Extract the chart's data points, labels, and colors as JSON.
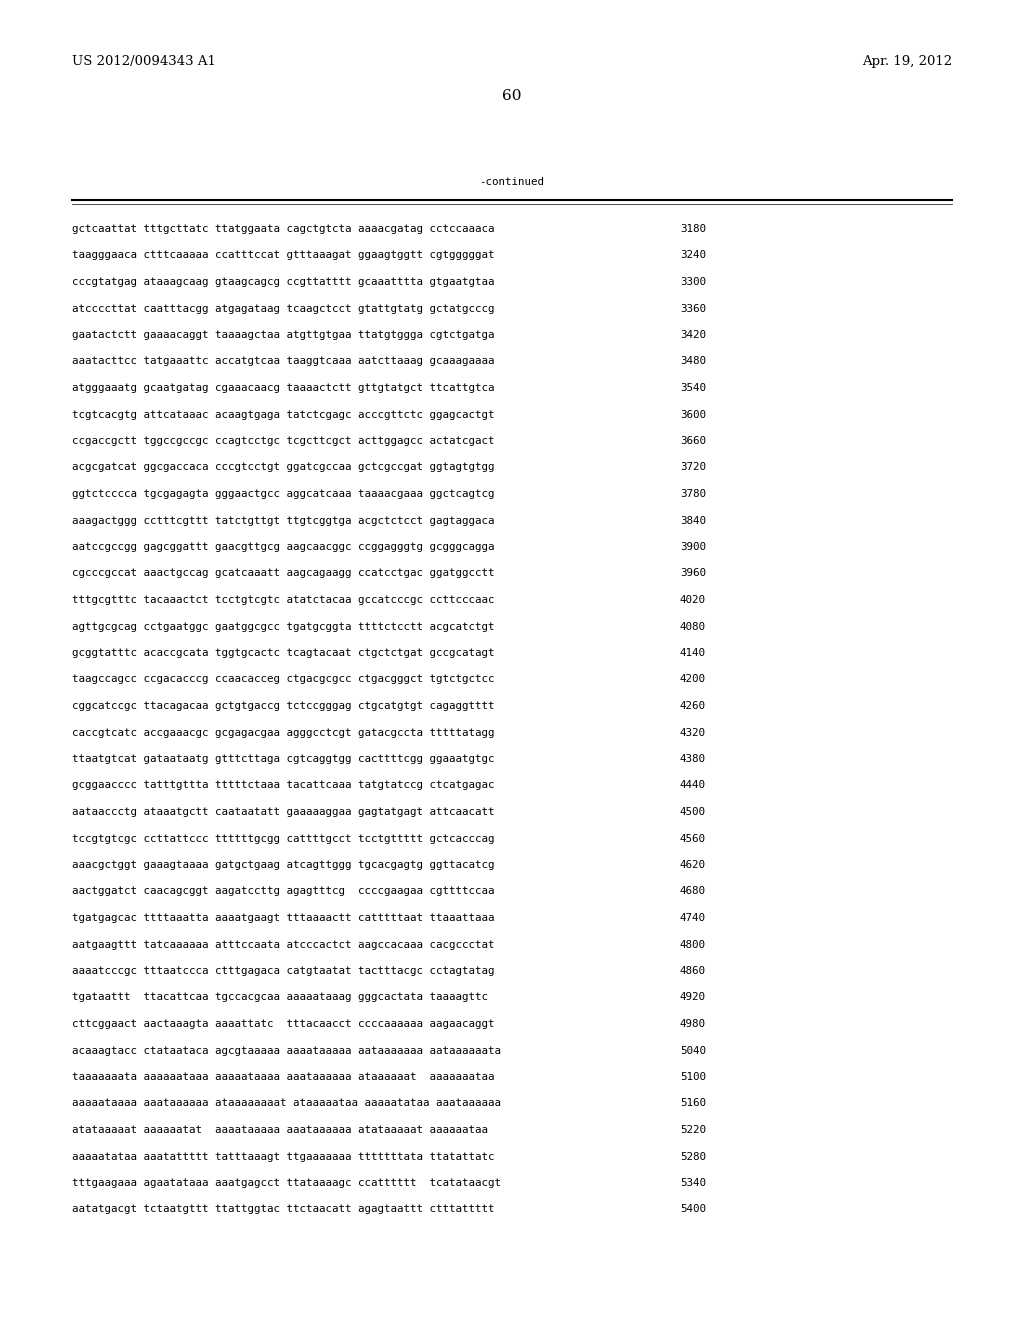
{
  "header_left": "US 2012/0094343 A1",
  "header_right": "Apr. 19, 2012",
  "page_number": "60",
  "continued_label": "-continued",
  "background_color": "#ffffff",
  "text_color": "#000000",
  "font_size_header": 9.5,
  "font_size_body": 7.8,
  "font_size_page": 11,
  "lines": [
    [
      "gctcaattat tttgcttatc ttatggaata cagctgtcta aaaacgatag cctccaaaca",
      "3180"
    ],
    [
      "taagggaaca ctttcaaaaa ccatttccat gtttaaagat ggaagtggtt cgtgggggat",
      "3240"
    ],
    [
      "cccgtatgag ataaagcaag gtaagcagcg ccgttatttt gcaaatttta gtgaatgtaa",
      "3300"
    ],
    [
      "atccccttat caatttacgg atgagataag tcaagctcct gtattgtatg gctatgcccg",
      "3360"
    ],
    [
      "gaatactctt gaaaacaggt taaaagctaa atgttgtgaa ttatgtggga cgtctgatga",
      "3420"
    ],
    [
      "aaatacttcc tatgaaattc accatgtcaa taaggtcaaa aatcttaaag gcaaagaaaa",
      "3480"
    ],
    [
      "atgggaaatg gcaatgatag cgaaacaacg taaaactctt gttgtatgct ttcattgtca",
      "3540"
    ],
    [
      "tcgtcacgtg attcataaac acaagtgaga tatctcgagc acccgttctc ggagcactgt",
      "3600"
    ],
    [
      "ccgaccgctt tggccgccgc ccagtcctgc tcgcttcgct acttggagcc actatcgact",
      "3660"
    ],
    [
      "acgcgatcat ggcgaccaca cccgtcctgt ggatcgccaa gctcgccgat ggtagtgtgg",
      "3720"
    ],
    [
      "ggtctcccca tgcgagagta gggaactgcc aggcatcaaa taaaacgaaa ggctcagtcg",
      "3780"
    ],
    [
      "aaagactggg cctttcgttt tatctgttgt ttgtcggtga acgctctcct gagtaggaca",
      "3840"
    ],
    [
      "aatccgccgg gagcggattt gaacgttgcg aagcaacggc ccggagggtg gcgggcagga",
      "3900"
    ],
    [
      "cgcccgccat aaactgccag gcatcaaatt aagcagaagg ccatcctgac ggatggcctt",
      "3960"
    ],
    [
      "tttgcgtttc tacaaactct tcctgtcgtc atatctacaa gccatcccgc ccttcccaac",
      "4020"
    ],
    [
      "agttgcgcag cctgaatggc gaatggcgcc tgatgcggta ttttctcctt acgcatctgt",
      "4080"
    ],
    [
      "gcggtatttc acaccgcata tggtgcactc tcagtacaat ctgctctgat gccgcatagt",
      "4140"
    ],
    [
      "taagccagcc ccgacacccg ccaacacceg ctgacgcgcc ctgacgggct tgtctgctcc",
      "4200"
    ],
    [
      "cggcatccgc ttacagacaa gctgtgaccg tctccgggag ctgcatgtgt cagaggtttt",
      "4260"
    ],
    [
      "caccgtcatc accgaaacgc gcgagacgaa agggcctcgt gatacgccta tttttatagg",
      "4320"
    ],
    [
      "ttaatgtcat gataataatg gtttcttaga cgtcaggtgg cacttttcgg ggaaatgtgc",
      "4380"
    ],
    [
      "gcggaacccc tatttgttta tttttctaaa tacattcaaa tatgtatccg ctcatgagac",
      "4440"
    ],
    [
      "aataaccctg ataaatgctt caataatatt gaaaaaggaa gagtatgagt attcaacatt",
      "4500"
    ],
    [
      "tccgtgtcgc ccttattccc ttttttgcgg cattttgcct tcctgttttt gctcacccag",
      "4560"
    ],
    [
      "aaacgctggt gaaagtaaaa gatgctgaag atcagttggg tgcacgagtg ggttacatcg",
      "4620"
    ],
    [
      "aactggatct caacagcggt aagatccttg agagtttcg  ccccgaagaa cgttttccaa",
      "4680"
    ],
    [
      "tgatgagcac ttttaaatta aaaatgaagt tttaaaactt catttttaat ttaaattaaa",
      "4740"
    ],
    [
      "aatgaagttt tatcaaaaaa atttccaata atcccactct aagccacaaa cacgccctat",
      "4800"
    ],
    [
      "aaaatcccgc tttaatccca ctttgagaca catgtaatat tactttacgc cctagtatag",
      "4860"
    ],
    [
      "tgataattt  ttacattcaa tgccacgcaa aaaaataaag gggcactata taaaagttc",
      "4920"
    ],
    [
      "cttcggaact aactaaagta aaaattatc  tttacaacct ccccaaaaaa aagaacaggt",
      "4980"
    ],
    [
      "acaaagtacc ctataataca agcgtaaaaa aaaataaaaa aataaaaaaa aataaaaaata",
      "5040"
    ],
    [
      "taaaaaaata aaaaaataaa aaaaataaaa aaataaaaaa ataaaaaat  aaaaaaataa",
      "5100"
    ],
    [
      "aaaaataaaa aaataaaaaa ataaaaaaaat ataaaaataa aaaaatataa aaataaaaaa",
      "5160"
    ],
    [
      "atataaaaat aaaaaatat  aaaataaaaa aaataaaaaa atataaaaat aaaaaataa",
      "5220"
    ],
    [
      "aaaaatataa aaatattttt tatttaaagt ttgaaaaaaa tttttttata ttatattatc",
      "5280"
    ],
    [
      "tttgaagaaa agaatataaa aaatgagcct ttataaaagc ccatttttt  tcatataacgt",
      "5340"
    ],
    [
      "aatatgacgt tctaatgttt ttattggtac ttctaacatt agagtaattt ctttattttt",
      "5400"
    ]
  ]
}
